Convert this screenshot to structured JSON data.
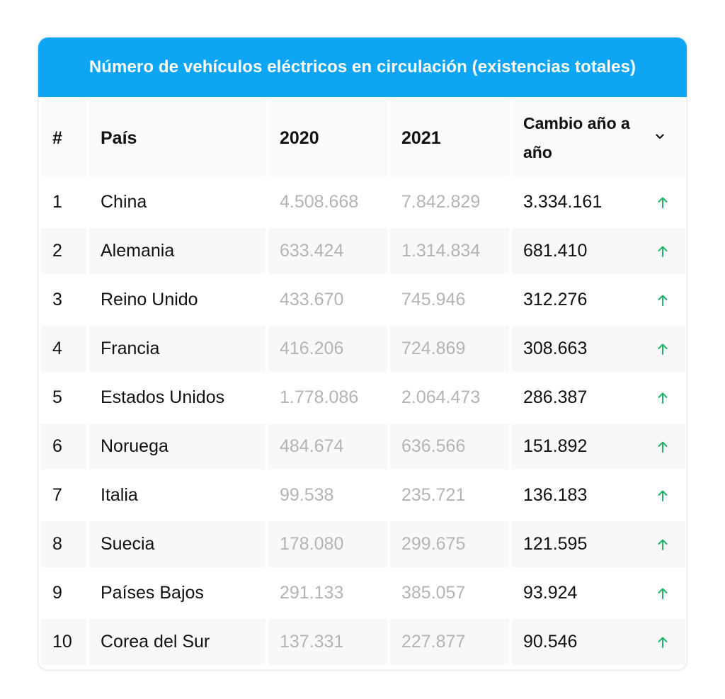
{
  "title": "Número de vehículos eléctricos en circulación (existencias totales)",
  "header": {
    "rank": "#",
    "country": "País",
    "year_2020": "2020",
    "year_2021": "2021",
    "change": "Cambio año a año",
    "sort_icon": "chevron-down-icon"
  },
  "accent_color": "#0ea5f5",
  "trend_color": "#1fb26a",
  "rows": [
    {
      "rank": "1",
      "country": "China",
      "y2020": "4.508.668",
      "y2021": "7.842.829",
      "change": "3.334.161",
      "trend": "up"
    },
    {
      "rank": "2",
      "country": "Alemania",
      "y2020": "633.424",
      "y2021": "1.314.834",
      "change": "681.410",
      "trend": "up"
    },
    {
      "rank": "3",
      "country": "Reino Unido",
      "y2020": "433.670",
      "y2021": "745.946",
      "change": "312.276",
      "trend": "up"
    },
    {
      "rank": "4",
      "country": "Francia",
      "y2020": "416.206",
      "y2021": "724.869",
      "change": "308.663",
      "trend": "up"
    },
    {
      "rank": "5",
      "country": "Estados Unidos",
      "y2020": "1.778.086",
      "y2021": "2.064.473",
      "change": "286.387",
      "trend": "up"
    },
    {
      "rank": "6",
      "country": "Noruega",
      "y2020": "484.674",
      "y2021": "636.566",
      "change": "151.892",
      "trend": "up"
    },
    {
      "rank": "7",
      "country": "Italia",
      "y2020": "99.538",
      "y2021": "235.721",
      "change": "136.183",
      "trend": "up"
    },
    {
      "rank": "8",
      "country": "Suecia",
      "y2020": "178.080",
      "y2021": "299.675",
      "change": "121.595",
      "trend": "up"
    },
    {
      "rank": "9",
      "country": "Países Bajos",
      "y2020": "291.133",
      "y2021": "385.057",
      "change": "93.924",
      "trend": "up"
    },
    {
      "rank": "10",
      "country": "Corea del Sur",
      "y2020": "137.331",
      "y2021": "227.877",
      "change": "90.546",
      "trend": "up"
    }
  ]
}
